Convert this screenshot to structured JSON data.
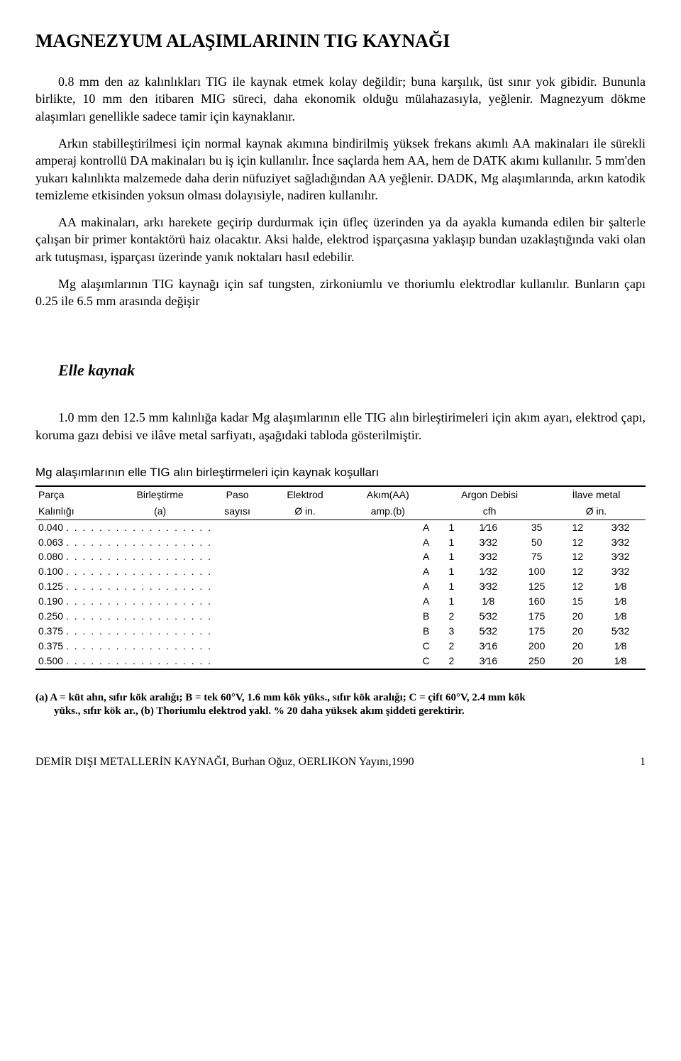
{
  "title": "MAGNEZYUM ALAŞIMLARININ TIG KAYNAĞI",
  "paragraphs": {
    "p1": "0.8 mm den az kalınlıkları TIG ile kaynak etmek kolay değildir; buna karşılık, üst sınır yok gibidir. Bununla birlikte, 10 mm den itibaren MIG süreci, daha ekonomik olduğu mülahazasıyla, yeğlenir. Magnezyum dökme alaşımları genellikle sadece tamir için kaynaklanır.",
    "p2": "Arkın stabilleştirilmesi için normal kaynak akımına bindirilmiş yüksek frekans akımlı AA makinaları ile sürekli amperaj kontrollü DA makinaları bu iş için kullanılır. İnce saçlarda hem AA, hem de DATK akımı kullanılır. 5 mm'den yukarı kalınlıkta malzemede daha derin nüfuziyet sağladığından AA yeğlenir. DADK, Mg alaşımlarında, arkın katodik temizleme etkisinden yoksun olması dolayısiyle, nadiren kullanılır.",
    "p3": "AA makinaları, arkı harekete geçirip durdurmak için üfleç üzerinden ya da ayakla kumanda edilen bir şalterle çalışan bir primer kontaktörü haiz olacaktır. Aksi halde, elektrod işparçasına yaklaşıp bundan uzaklaştığında vaki olan ark tutuşması, işparçası üzerinde yanık noktaları hasıl edebilir.",
    "p4": "Mg alaşımlarının TIG kaynağı için saf tungsten, zirkoniumlu ve thoriumlu elektrodlar kullanılır. Bunların çapı 0.25 ile 6.5 mm arasında değişir"
  },
  "section_heading": "Elle kaynak",
  "p5": "1.0 mm den 12.5 mm kalınlığa kadar Mg alaşımlarının elle TIG alın birleştirimeleri için akım ayarı, elektrod çapı, koruma gazı debisi ve ilâve metal sarfiyatı, aşağıdaki tabloda gösterilmiştir.",
  "table": {
    "title": "Mg alaşımlarının elle TIG alın birleştirmeleri için kaynak koşulları",
    "headers": {
      "c1a": "Parça",
      "c1b": "Kalınlığı",
      "c2a": "Birleştirme",
      "c2b": "(a)",
      "c3a": "Paso",
      "c3b": "sayısı",
      "c4a": "Elektrod",
      "c4b": "Ø in.",
      "c5a": "Akım(AA)",
      "c5b": "amp.(b)",
      "c6a": "Argon Debisi",
      "c6b": "cfh",
      "c7a": "İlave metal",
      "c7b": "Ø in."
    },
    "rows": [
      {
        "thick": "0.040",
        "join": "A",
        "pass": "1",
        "elec": "1⁄16",
        "amp": "35",
        "argon": "12",
        "fill": "3⁄32"
      },
      {
        "thick": "0.063",
        "join": "A",
        "pass": "1",
        "elec": "3⁄32",
        "amp": "50",
        "argon": "12",
        "fill": "3⁄32"
      },
      {
        "thick": "0.080",
        "join": "A",
        "pass": "1",
        "elec": "3⁄32",
        "amp": "75",
        "argon": "12",
        "fill": "3⁄32"
      },
      {
        "thick": "0.100",
        "join": "A",
        "pass": "1",
        "elec": "1⁄32",
        "amp": "100",
        "argon": "12",
        "fill": "3⁄32"
      },
      {
        "thick": "0.125",
        "join": "A",
        "pass": "1",
        "elec": "3⁄32",
        "amp": "125",
        "argon": "12",
        "fill": "1⁄8"
      },
      {
        "thick": "0.190",
        "join": "A",
        "pass": "1",
        "elec": "1⁄8",
        "amp": "160",
        "argon": "15",
        "fill": "1⁄8"
      },
      {
        "thick": "0.250",
        "join": "B",
        "pass": "2",
        "elec": "5⁄32",
        "amp": "175",
        "argon": "20",
        "fill": "1⁄8"
      },
      {
        "thick": "0.375",
        "join": "B",
        "pass": "3",
        "elec": "5⁄32",
        "amp": "175",
        "argon": "20",
        "fill": "5⁄32"
      },
      {
        "thick": "0.375",
        "join": "C",
        "pass": "2",
        "elec": "3⁄16",
        "amp": "200",
        "argon": "20",
        "fill": "1⁄8"
      },
      {
        "thick": "0.500",
        "join": "C",
        "pass": "2",
        "elec": "3⁄16",
        "amp": "250",
        "argon": "20",
        "fill": "1⁄8"
      }
    ]
  },
  "footnote_line1": "(a)  A = küt ahn, sıfır kök aralığı; B = tek 60°V, 1.6 mm kök yüks., sıfır kök aralığı; C = çift 60°V, 2.4 mm kök",
  "footnote_line2": "yüks., sıfır kök ar., (b) Thoriumlu elektrod yakl. % 20 daha yüksek akım şiddeti gerektirir.",
  "footer_text": "DEMİR DIŞI METALLERİN KAYNAĞI, Burhan Oğuz, OERLIKON Yayını,1990",
  "page_number": "1"
}
